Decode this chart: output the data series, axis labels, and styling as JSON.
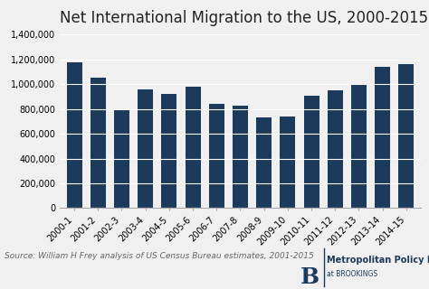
{
  "title": "Net International Migration to the US, 2000-2015",
  "categories": [
    "2000-1",
    "2001-2",
    "2002-3",
    "2003-4",
    "2004-5",
    "2005-6",
    "2006-7",
    "2007-8",
    "2008-9",
    "2009-10",
    "2010-11",
    "2011-12",
    "2012-13",
    "2013-14",
    "2014-15"
  ],
  "values": [
    1180000,
    1050000,
    800000,
    960000,
    925000,
    980000,
    845000,
    830000,
    730000,
    740000,
    910000,
    950000,
    995000,
    1140000,
    1160000
  ],
  "bar_color": "#1b3a5c",
  "ylim": [
    0,
    1400000
  ],
  "yticks": [
    0,
    200000,
    400000,
    600000,
    800000,
    1000000,
    1200000,
    1400000
  ],
  "source_text": "Source: William H Frey analysis of US Census Bureau estimates, 2001-2015",
  "background_color": "#f0f0f0",
  "title_fontsize": 12,
  "tick_fontsize": 7,
  "source_fontsize": 6.5,
  "logo_b_fontsize": 18,
  "logo_main_fontsize": 7,
  "logo_sub_fontsize": 5.5,
  "logo_color": "#1b3a5c"
}
